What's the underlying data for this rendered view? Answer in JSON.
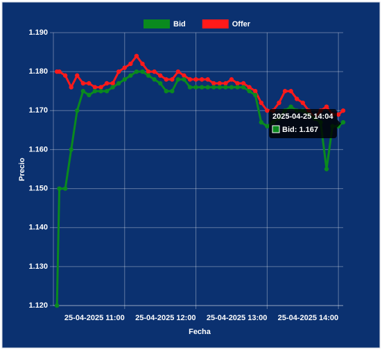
{
  "chart_data": {
    "type": "line",
    "x_label": "Fecha",
    "y_label": "Precio",
    "x": [
      "2025-04-25 10:03",
      "2025-04-25 10:05",
      "2025-04-25 10:10",
      "2025-04-25 10:15",
      "2025-04-25 10:20",
      "2025-04-25 10:25",
      "2025-04-25 10:30",
      "2025-04-25 10:35",
      "2025-04-25 10:40",
      "2025-04-25 10:45",
      "2025-04-25 10:50",
      "2025-04-25 10:55",
      "2025-04-25 11:00",
      "2025-04-25 11:05",
      "2025-04-25 11:10",
      "2025-04-25 11:15",
      "2025-04-25 11:20",
      "2025-04-25 11:25",
      "2025-04-25 11:30",
      "2025-04-25 11:35",
      "2025-04-25 11:40",
      "2025-04-25 11:45",
      "2025-04-25 11:50",
      "2025-04-25 11:55",
      "2025-04-25 12:00",
      "2025-04-25 12:05",
      "2025-04-25 12:10",
      "2025-04-25 12:15",
      "2025-04-25 12:20",
      "2025-04-25 12:25",
      "2025-04-25 12:30",
      "2025-04-25 12:35",
      "2025-04-25 12:40",
      "2025-04-25 12:45",
      "2025-04-25 12:50",
      "2025-04-25 12:55",
      "2025-04-25 13:00",
      "2025-04-25 13:05",
      "2025-04-25 13:10",
      "2025-04-25 13:15",
      "2025-04-25 13:20",
      "2025-04-25 13:25",
      "2025-04-25 13:30",
      "2025-04-25 13:35",
      "2025-04-25 13:40",
      "2025-04-25 13:45",
      "2025-04-25 13:50",
      "2025-04-25 13:55",
      "2025-04-25 14:00",
      "2025-04-25 14:04"
    ],
    "series": [
      {
        "name": "Bid",
        "color": "#0a8a1e",
        "values": [
          1.12,
          1.15,
          1.15,
          1.16,
          1.17,
          1.175,
          1.174,
          1.175,
          1.175,
          1.175,
          1.176,
          1.177,
          1.178,
          1.179,
          1.18,
          1.18,
          1.179,
          1.178,
          1.177,
          1.175,
          1.175,
          1.178,
          1.178,
          1.176,
          1.176,
          1.176,
          1.176,
          1.176,
          1.176,
          1.176,
          1.176,
          1.176,
          1.176,
          1.175,
          1.174,
          1.167,
          1.166,
          1.167,
          1.168,
          1.17,
          1.171,
          1.17,
          1.17,
          1.169,
          1.168,
          1.167,
          1.155,
          1.166,
          1.166,
          1.167
        ]
      },
      {
        "name": "Offer",
        "color": "#ff1a1a",
        "values": [
          1.18,
          1.18,
          1.179,
          1.176,
          1.179,
          1.177,
          1.177,
          1.176,
          1.176,
          1.177,
          1.177,
          1.18,
          1.181,
          1.182,
          1.184,
          1.182,
          1.18,
          1.18,
          1.179,
          1.178,
          1.178,
          1.18,
          1.179,
          1.178,
          1.178,
          1.178,
          1.178,
          1.177,
          1.177,
          1.177,
          1.178,
          1.177,
          1.177,
          1.176,
          1.175,
          1.172,
          1.17,
          1.17,
          1.172,
          1.175,
          1.175,
          1.173,
          1.172,
          1.17,
          1.168,
          1.17,
          1.171,
          1.169,
          1.169,
          1.17
        ]
      }
    ],
    "xlim": [
      "2025-04-25 10:00",
      "2025-04-25 14:04"
    ],
    "xticks": [
      {
        "value": "2025-04-25 11:00",
        "label": "25-04-2025 11:00"
      },
      {
        "value": "2025-04-25 12:00",
        "label": "25-04-2025 12:00"
      },
      {
        "value": "2025-04-25 13:00",
        "label": "25-04-2025 13:00"
      },
      {
        "value": "2025-04-25 14:00",
        "label": "25-04-2025 14:00"
      }
    ],
    "ylim": [
      1.12,
      1.19
    ],
    "yticks": [
      {
        "value": 1.12,
        "label": "1.120"
      },
      {
        "value": 1.13,
        "label": "1.130"
      },
      {
        "value": 1.14,
        "label": "1.140"
      },
      {
        "value": 1.15,
        "label": "1.150"
      },
      {
        "value": 1.16,
        "label": "1.160"
      },
      {
        "value": 1.17,
        "label": "1.170"
      },
      {
        "value": 1.18,
        "label": "1.180"
      },
      {
        "value": 1.19,
        "label": "1.190"
      }
    ],
    "grid": true,
    "legend": "top",
    "tooltip": {
      "title": "2025-04-25 14:04",
      "label": "Bid: 1.167"
    }
  }
}
